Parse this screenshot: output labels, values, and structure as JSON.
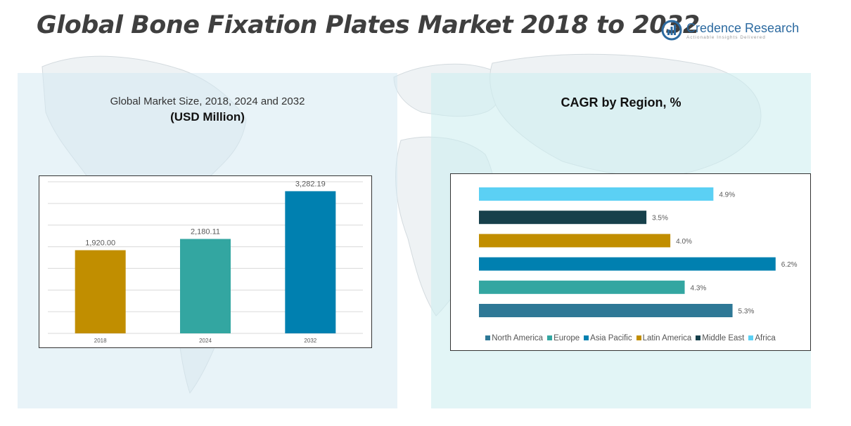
{
  "title": "Global Bone Fixation Plates Market 2018 to 2032",
  "logo": {
    "name": "Credence Research",
    "tagline": "Actionable Insights Delivered"
  },
  "left_panel": {
    "title_line1": "Global Market Size, 2018, 2024 and 2032",
    "title_line2": "(USD Million)"
  },
  "right_panel": {
    "title": "CAGR by Region, %"
  },
  "colors": {
    "panel_left": "#d5e9f3",
    "panel_right": "#ceeef0",
    "gridline": "#d9d9d9"
  },
  "chart_data": [
    {
      "type": "bar",
      "categories": [
        "2018",
        "2024",
        "2032"
      ],
      "values": [
        1920.0,
        2180.11,
        3282.19
      ],
      "value_labels": [
        "1,920.00",
        "2,180.11",
        "3,282.19"
      ],
      "colors": [
        "#c18e00",
        "#33a6a1",
        "#0080b0"
      ],
      "ylim": [
        0,
        3500
      ],
      "gridlines": [
        0,
        500,
        1000,
        1500,
        2000,
        2500,
        3000,
        3500
      ],
      "grid": true,
      "orientation": "vertical"
    },
    {
      "type": "bar",
      "orientation": "horizontal",
      "categories": [
        "Africa",
        "Middle East",
        "Latin America",
        "Asia Pacific",
        "Europe",
        "North America"
      ],
      "values": [
        4.9,
        3.5,
        4.0,
        6.2,
        4.3,
        5.3
      ],
      "value_labels": [
        "4.9%",
        "3.5%",
        "4.0%",
        "6.2%",
        "4.3%",
        "5.3%"
      ],
      "colors": [
        "#5bd0f4",
        "#17404b",
        "#c18e00",
        "#0080b0",
        "#33a6a1",
        "#2e7896"
      ],
      "xlim": [
        0,
        6.6
      ],
      "legend": {
        "position": "bottom",
        "entries": [
          {
            "label": "North America",
            "color": "#2e7896"
          },
          {
            "label": "Europe",
            "color": "#33a6a1"
          },
          {
            "label": "Asia Pacific",
            "color": "#0080b0"
          },
          {
            "label": "Latin America",
            "color": "#c18e00"
          },
          {
            "label": "Middle East",
            "color": "#17404b"
          },
          {
            "label": "Africa",
            "color": "#5bd0f4"
          }
        ]
      }
    }
  ]
}
